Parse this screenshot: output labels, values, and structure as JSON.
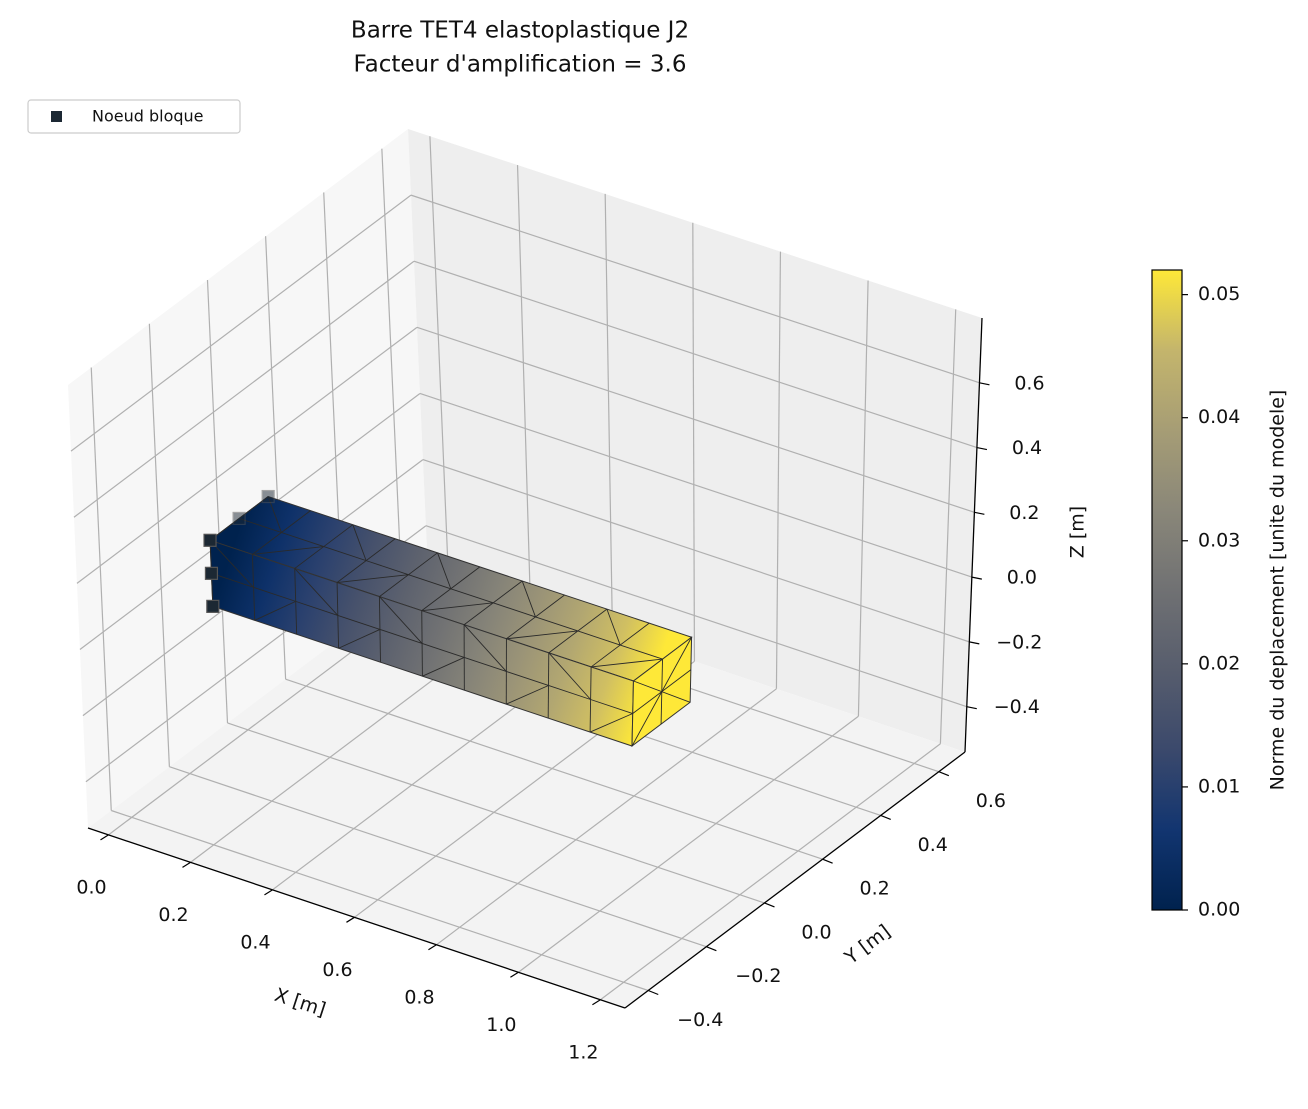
{
  "chart_data": {
    "type": "mesh3d",
    "title": "Barre TET4 elastoplastique J2",
    "subtitle": "Facteur d'amplification = 3.6",
    "xlabel": "X [m]",
    "ylabel": "Y [m]",
    "zlabel": "Z [m]",
    "xlim": [
      -0.05,
      1.26
    ],
    "ylim": [
      -0.48,
      0.69
    ],
    "zlim": [
      -0.54,
      0.8
    ],
    "xticks": [
      {
        "value": 0,
        "label": "0.0"
      },
      0.2,
      0.4,
      0.6,
      0.8,
      {
        "value": 1,
        "label": "1.0"
      },
      1.2
    ],
    "yticks": [
      {
        "value": -0.4,
        "label": "−0.4"
      },
      {
        "value": -0.2,
        "label": "−0.2"
      },
      {
        "value": 0,
        "label": "0.0"
      },
      0.2,
      0.4,
      0.6
    ],
    "zticks": [
      {
        "value": -0.4,
        "label": "−0.4"
      },
      {
        "value": -0.2,
        "label": "−0.2"
      },
      {
        "value": 0,
        "label": "0.0"
      },
      0.2,
      0.4,
      0.6
    ],
    "grid": true,
    "legend": "upper left",
    "mesh": {
      "x": [
        0,
        1
      ],
      "y": [
        -0.1,
        0.1
      ],
      "z": [
        -0.1,
        0.1
      ],
      "displacement": [
        0,
        0.052
      ]
    },
    "series": [
      {
        "name": "Noeud bloque",
        "color": "#1c2833",
        "x": [
          0,
          0,
          0,
          0,
          0
        ],
        "y": [
          -0.1,
          -0.1,
          -0.1,
          0,
          0.1
        ],
        "z": [
          0.1,
          0,
          -0.1,
          0.1,
          0.1
        ]
      }
    ],
    "colorbar": {
      "label": "Norme du deplacement [unite du modele]",
      "colormap": "cividis",
      "clim": [
        0,
        0.052
      ],
      "ticks": [
        {
          "value": 0,
          "label": "0.00"
        },
        0.01,
        0.02,
        0.03,
        0.04,
        0.05
      ]
    }
  }
}
